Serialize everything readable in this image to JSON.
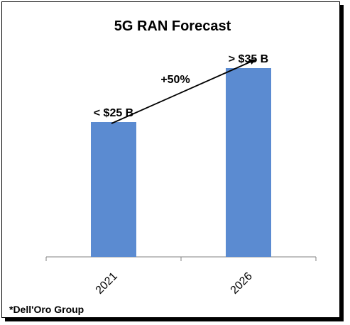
{
  "chart_data": {
    "type": "bar",
    "title": "5G RAN Forecast",
    "categories": [
      "2021",
      "2026"
    ],
    "values": [
      25,
      35
    ],
    "data_labels": [
      "< $25 B",
      "> $35 B"
    ],
    "xlabel": "",
    "ylabel": "",
    "ylim": [
      0,
      40
    ],
    "grid": false,
    "legend": "none",
    "bar_color": "#5b8bd1",
    "annotation": "+50%",
    "source_note": "*Dell'Oro Group"
  }
}
